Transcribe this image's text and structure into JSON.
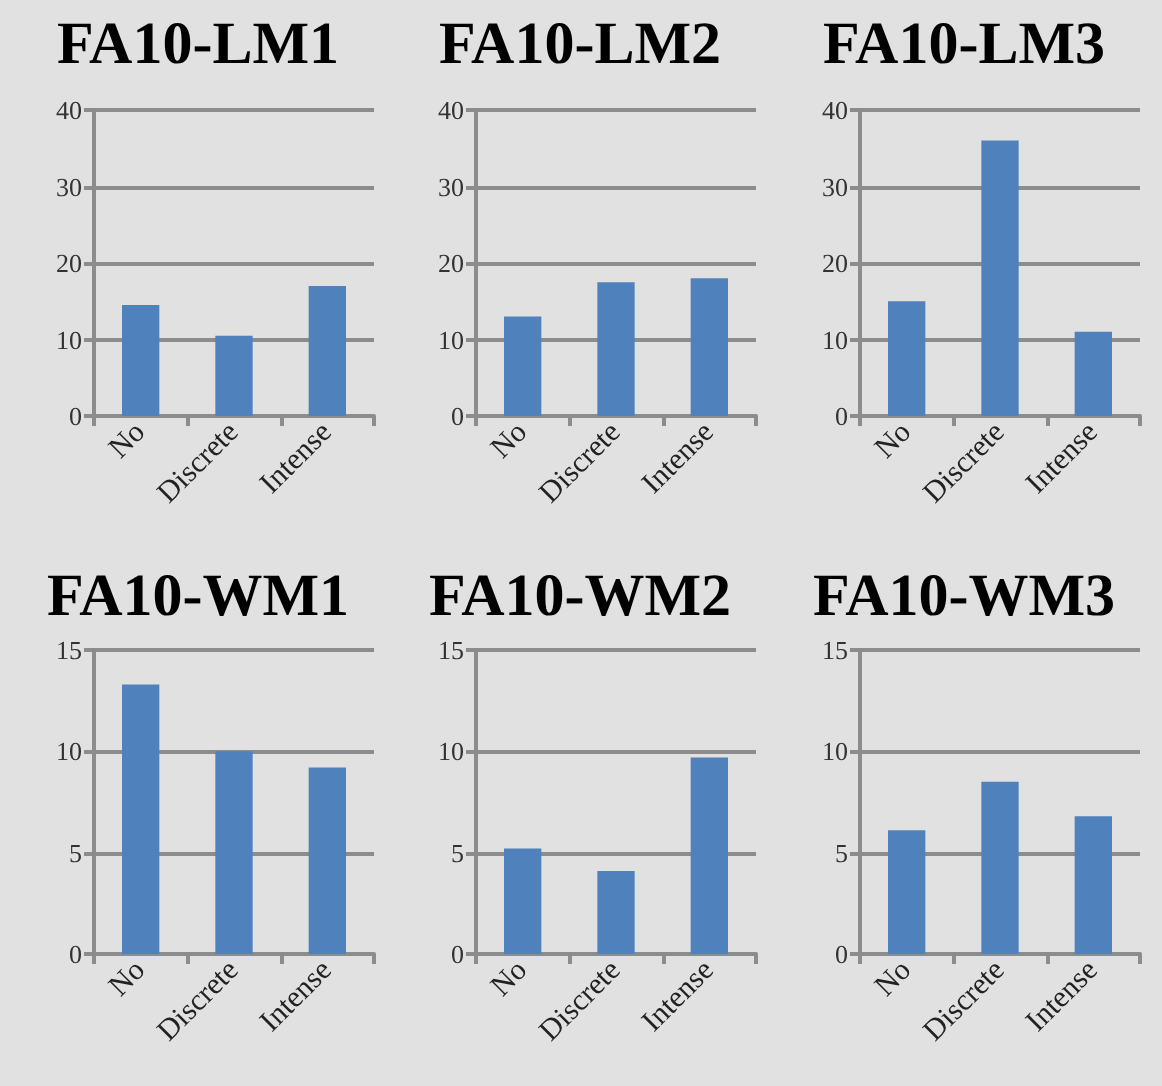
{
  "chart_data": [
    {
      "type": "bar",
      "title": "FA10-LM1",
      "categories": [
        "No",
        "Discrete",
        "Intense"
      ],
      "values": [
        14.5,
        10.5,
        17
      ],
      "color": "#4f81bd",
      "ylim": [
        0,
        40
      ],
      "yticks": [
        0,
        10,
        20,
        30,
        40
      ],
      "grid": "y"
    },
    {
      "type": "bar",
      "title": "FA10-LM2",
      "categories": [
        "No",
        "Discrete",
        "Intense"
      ],
      "values": [
        13,
        17.5,
        18
      ],
      "color": "#4f81bd",
      "ylim": [
        0,
        40
      ],
      "yticks": [
        0,
        10,
        20,
        30,
        40
      ],
      "grid": "y"
    },
    {
      "type": "bar",
      "title": "FA10-LM3",
      "categories": [
        "No",
        "Discrete",
        "Intense"
      ],
      "values": [
        15,
        36,
        11
      ],
      "color": "#4f81bd",
      "ylim": [
        0,
        40
      ],
      "yticks": [
        0,
        10,
        20,
        30,
        40
      ],
      "grid": "y"
    },
    {
      "type": "bar",
      "title": "FA10-WM1",
      "categories": [
        "No",
        "Discrete",
        "Intense"
      ],
      "values": [
        13.3,
        10,
        9.2
      ],
      "color": "#4f81bd",
      "ylim": [
        0,
        15
      ],
      "yticks": [
        0,
        5,
        10,
        15
      ],
      "grid": "y"
    },
    {
      "type": "bar",
      "title": "FA10-WM2",
      "categories": [
        "No",
        "Discrete",
        "Intense"
      ],
      "values": [
        5.2,
        4.1,
        9.7
      ],
      "color": "#4f81bd",
      "ylim": [
        0,
        15
      ],
      "yticks": [
        0,
        5,
        10,
        15
      ],
      "grid": "y"
    },
    {
      "type": "bar",
      "title": "FA10-WM3",
      "categories": [
        "No",
        "Discrete",
        "Intense"
      ],
      "values": [
        6.1,
        8.5,
        6.8
      ],
      "color": "#4f81bd",
      "ylim": [
        0,
        15
      ],
      "yticks": [
        0,
        5,
        10,
        15
      ],
      "grid": "y"
    }
  ]
}
